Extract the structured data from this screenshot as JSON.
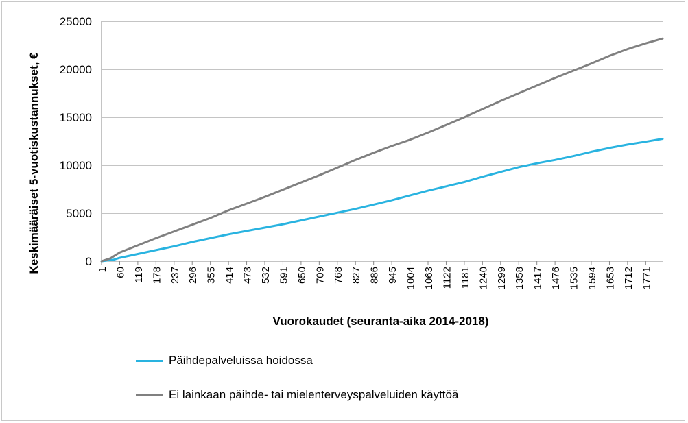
{
  "chart_data": {
    "type": "line",
    "title": "",
    "xlabel": "Vuorokaudet  (seuranta-aika 2014-2018)",
    "ylabel": "Keskimääräiset 5-vuotiskustannukset,  €",
    "ylim": [
      0,
      25000
    ],
    "yticks": [
      "0",
      "5000",
      "10000",
      "15000",
      "20000",
      "25000"
    ],
    "xlim": [
      1,
      1826
    ],
    "xticks": [
      "1",
      "60",
      "119",
      "178",
      "237",
      "296",
      "355",
      "414",
      "473",
      "532",
      "591",
      "650",
      "709",
      "768",
      "827",
      "886",
      "945",
      "1004",
      "1063",
      "1122",
      "1181",
      "1240",
      "1299",
      "1358",
      "1417",
      "1476",
      "1535",
      "1594",
      "1653",
      "1712",
      "1771"
    ],
    "grid": "horizontal",
    "legend_position": "bottom",
    "series": [
      {
        "name": "Päihdepalveluissa hoidossa",
        "color": "#29b3e0",
        "x": [
          1,
          40,
          60,
          119,
          178,
          237,
          296,
          355,
          414,
          473,
          532,
          591,
          650,
          709,
          768,
          827,
          886,
          945,
          1004,
          1063,
          1122,
          1181,
          1240,
          1299,
          1358,
          1417,
          1476,
          1535,
          1594,
          1653,
          1712,
          1771,
          1826
        ],
        "y": [
          0,
          150,
          350,
          750,
          1150,
          1550,
          2000,
          2400,
          2800,
          3150,
          3500,
          3850,
          4250,
          4650,
          5050,
          5450,
          5900,
          6350,
          6850,
          7350,
          7800,
          8250,
          8800,
          9300,
          9800,
          10200,
          10550,
          10950,
          11400,
          11800,
          12150,
          12450,
          12750
        ]
      },
      {
        "name": "Ei lainkaan päihde- tai mielenterveyspalveluiden käyttöä",
        "color": "#808080",
        "x": [
          1,
          30,
          60,
          119,
          178,
          237,
          296,
          355,
          414,
          473,
          532,
          591,
          650,
          709,
          768,
          827,
          886,
          945,
          1004,
          1063,
          1122,
          1181,
          1240,
          1299,
          1358,
          1417,
          1476,
          1535,
          1594,
          1653,
          1712,
          1771,
          1826
        ],
        "y": [
          0,
          300,
          900,
          1650,
          2400,
          3100,
          3800,
          4500,
          5300,
          6000,
          6700,
          7450,
          8200,
          8950,
          9750,
          10550,
          11300,
          12000,
          12650,
          13400,
          14200,
          15000,
          15850,
          16700,
          17500,
          18300,
          19100,
          19850,
          20600,
          21400,
          22100,
          22700,
          23200
        ]
      }
    ]
  }
}
